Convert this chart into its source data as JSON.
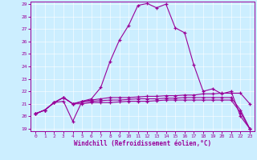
{
  "xlabel": "Windchill (Refroidissement éolien,°C)",
  "bg_color": "#cceeff",
  "line_color": "#990099",
  "xmin": 0,
  "xmax": 23,
  "ymin": 19,
  "ymax": 29,
  "x_ticks": [
    0,
    1,
    2,
    3,
    4,
    5,
    6,
    7,
    8,
    9,
    10,
    11,
    12,
    13,
    14,
    15,
    16,
    17,
    18,
    19,
    20,
    21,
    22,
    23
  ],
  "y_ticks": [
    19,
    20,
    21,
    22,
    23,
    24,
    25,
    26,
    27,
    28,
    29
  ],
  "series": [
    [
      20.2,
      20.5,
      21.1,
      21.2,
      19.6,
      21.2,
      21.4,
      22.3,
      24.4,
      26.1,
      27.3,
      28.9,
      29.05,
      28.7,
      29.0,
      27.1,
      26.7,
      24.1,
      22.0,
      22.2,
      21.8,
      22.0,
      20.0,
      19.0
    ],
    [
      20.2,
      20.5,
      21.1,
      21.5,
      21.0,
      21.2,
      21.3,
      21.4,
      21.5,
      21.5,
      21.5,
      21.55,
      21.6,
      21.6,
      21.65,
      21.65,
      21.7,
      21.7,
      21.8,
      21.8,
      21.85,
      21.85,
      21.85,
      21.0
    ],
    [
      20.2,
      20.5,
      21.1,
      21.5,
      21.0,
      21.15,
      21.2,
      21.25,
      21.3,
      21.3,
      21.35,
      21.4,
      21.4,
      21.4,
      21.45,
      21.45,
      21.5,
      21.5,
      21.5,
      21.5,
      21.5,
      21.5,
      20.5,
      19.0
    ],
    [
      20.2,
      20.5,
      21.1,
      21.5,
      21.0,
      21.0,
      21.1,
      21.1,
      21.1,
      21.15,
      21.2,
      21.2,
      21.2,
      21.25,
      21.3,
      21.3,
      21.3,
      21.3,
      21.3,
      21.3,
      21.3,
      21.3,
      20.3,
      19.0
    ]
  ]
}
